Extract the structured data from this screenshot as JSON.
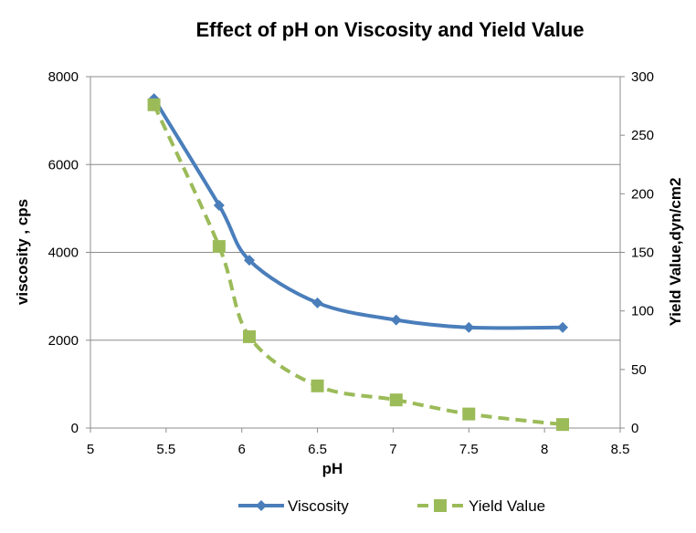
{
  "chart_data": {
    "type": "line",
    "title": "Effect of pH on Viscosity and Yield Value",
    "xlabel": "pH",
    "ylabel": "viscosity , cps",
    "y2label": "Yield Value,dyn/cm2",
    "xlim": [
      5,
      8.5
    ],
    "ylim": [
      0,
      8000
    ],
    "y2lim": [
      0,
      300
    ],
    "x_ticks": [
      "5",
      "5.5",
      "6",
      "6.5",
      "7",
      "7.5",
      "8",
      "8.5"
    ],
    "y_ticks": [
      "0",
      "2000",
      "4000",
      "6000",
      "8000"
    ],
    "y2_ticks": [
      "0",
      "50",
      "100",
      "150",
      "200",
      "250",
      "300"
    ],
    "grid": true,
    "legend_position": "bottom",
    "series": [
      {
        "name": "Viscosity",
        "axis": "left",
        "color": "#4a7ebb",
        "marker": "diamond",
        "line_style": "solid",
        "x": [
          5.42,
          5.85,
          6.05,
          6.5,
          7.02,
          7.5,
          8.12
        ],
        "values": [
          7500,
          5070,
          3820,
          2850,
          2460,
          2290,
          2290
        ]
      },
      {
        "name": "Yield Value",
        "axis": "right",
        "color": "#9bbb59",
        "marker": "square",
        "line_style": "dashed",
        "x": [
          5.42,
          5.85,
          6.05,
          6.5,
          7.02,
          7.5,
          8.12
        ],
        "values": [
          276,
          155,
          78,
          36,
          24,
          12,
          3
        ]
      }
    ]
  }
}
